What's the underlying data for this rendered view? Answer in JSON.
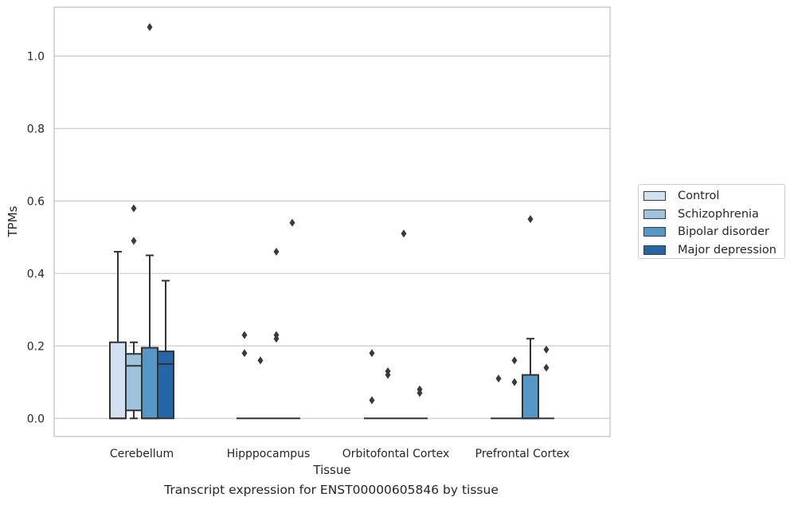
{
  "chart_data": {
    "type": "box",
    "xlabel": "Tissue",
    "ylabel": "TPMs",
    "ylim": [
      -0.05,
      1.135
    ],
    "yticks": [
      0.0,
      0.2,
      0.4,
      0.6,
      0.8,
      1.0
    ],
    "ytick_labels": [
      "0.0",
      "0.2",
      "0.4",
      "0.6",
      "0.8",
      "1.0"
    ],
    "grid": "horizontal",
    "legend_position": "outside-right",
    "categories": [
      "Cerebellum",
      "Hipppocampus",
      "Orbitofontal Cortex",
      "Prefrontal Cortex"
    ],
    "series": [
      {
        "name": "Control",
        "color": "#d2e1f0",
        "boxes": [
          {
            "q1": 0.0,
            "median": 0.0,
            "q3": 0.21,
            "whislo": 0.0,
            "whishi": 0.46,
            "fliers": []
          },
          {
            "q1": 0.0,
            "median": 0.0,
            "q3": 0.0,
            "whislo": 0.0,
            "whishi": 0.0,
            "fliers": [
              0.23,
              0.18
            ]
          },
          {
            "q1": 0.0,
            "median": 0.0,
            "q3": 0.0,
            "whislo": 0.0,
            "whishi": 0.0,
            "fliers": [
              0.18,
              0.05
            ]
          },
          {
            "q1": 0.0,
            "median": 0.0,
            "q3": 0.0,
            "whislo": 0.0,
            "whishi": 0.0,
            "fliers": [
              0.11
            ]
          }
        ]
      },
      {
        "name": "Schizophrenia",
        "color": "#9dc3dd",
        "boxes": [
          {
            "q1": 0.022,
            "median": 0.145,
            "q3": 0.178,
            "whislo": 0.0,
            "whishi": 0.21,
            "fliers": [
              0.58,
              0.49
            ]
          },
          {
            "q1": 0.0,
            "median": 0.0,
            "q3": 0.0,
            "whislo": 0.0,
            "whishi": 0.0,
            "fliers": [
              0.16
            ]
          },
          {
            "q1": 0.0,
            "median": 0.0,
            "q3": 0.0,
            "whislo": 0.0,
            "whishi": 0.0,
            "fliers": [
              0.13,
              0.12
            ]
          },
          {
            "q1": 0.0,
            "median": 0.0,
            "q3": 0.0,
            "whislo": 0.0,
            "whishi": 0.0,
            "fliers": [
              0.16,
              0.1
            ]
          }
        ]
      },
      {
        "name": "Bipolar disorder",
        "color": "#5597c6",
        "boxes": [
          {
            "q1": 0.0,
            "median": 0.0,
            "q3": 0.195,
            "whislo": 0.0,
            "whishi": 0.45,
            "fliers": [
              1.08
            ]
          },
          {
            "q1": 0.0,
            "median": 0.0,
            "q3": 0.0,
            "whislo": 0.0,
            "whishi": 0.0,
            "fliers": [
              0.46,
              0.23,
              0.22
            ]
          },
          {
            "q1": 0.0,
            "median": 0.0,
            "q3": 0.0,
            "whislo": 0.0,
            "whishi": 0.0,
            "fliers": [
              0.51
            ]
          },
          {
            "q1": 0.0,
            "median": 0.0,
            "q3": 0.12,
            "whislo": 0.0,
            "whishi": 0.22,
            "fliers": [
              0.55
            ]
          }
        ]
      },
      {
        "name": "Major depression",
        "color": "#2466a7",
        "boxes": [
          {
            "q1": 0.0,
            "median": 0.15,
            "q3": 0.185,
            "whislo": 0.0,
            "whishi": 0.38,
            "fliers": []
          },
          {
            "q1": 0.0,
            "median": 0.0,
            "q3": 0.0,
            "whislo": 0.0,
            "whishi": 0.0,
            "fliers": [
              0.54
            ]
          },
          {
            "q1": 0.0,
            "median": 0.0,
            "q3": 0.0,
            "whislo": 0.0,
            "whishi": 0.0,
            "fliers": [
              0.08,
              0.07
            ]
          },
          {
            "q1": 0.0,
            "median": 0.0,
            "q3": 0.0,
            "whislo": 0.0,
            "whishi": 0.0,
            "fliers": [
              0.19,
              0.14
            ]
          }
        ]
      }
    ]
  },
  "caption": "Transcript expression for ENST00000605846 by tissue"
}
